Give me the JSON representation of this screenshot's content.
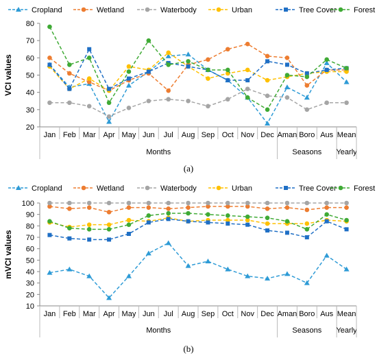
{
  "figure": {
    "panel_a_label": "(a)",
    "panel_b_label": "(b)"
  },
  "chart_data": [
    {
      "type": "line",
      "panel": "a",
      "ylabel": "VCI values",
      "ylim": [
        20,
        80
      ],
      "yticks": [
        20,
        30,
        40,
        50,
        60,
        70,
        80
      ],
      "grid": false,
      "legend_position": "top",
      "categories": [
        "Jan",
        "Feb",
        "Mar",
        "Apr",
        "May",
        "Jun",
        "Jul",
        "Aug",
        "Sep",
        "Oct",
        "Nov",
        "Dec",
        "Aman",
        "Boro",
        "Aus",
        "Mean"
      ],
      "groups": [
        {
          "label": "Months",
          "count": 12
        },
        {
          "label": "Seasons",
          "count": 3
        },
        {
          "label": "Yearly",
          "count": 1
        }
      ],
      "series": [
        {
          "name": "Cropland",
          "color": "#2E9BD6",
          "marker": "triangle",
          "values": [
            56,
            43,
            45,
            23,
            44,
            52,
            61,
            62,
            53,
            47,
            37,
            22,
            43,
            37,
            57,
            46
          ]
        },
        {
          "name": "Wetland",
          "color": "#ED7D31",
          "marker": "circle",
          "values": [
            60,
            51,
            46,
            41,
            47,
            51,
            41,
            56,
            59,
            65,
            68,
            61,
            60,
            44,
            53,
            53
          ]
        },
        {
          "name": "Waterbody",
          "color": "#A5A5A5",
          "marker": "circle",
          "values": [
            34,
            34,
            32,
            26,
            31,
            35,
            36,
            35,
            32,
            36,
            42,
            38,
            37,
            30,
            34,
            34
          ]
        },
        {
          "name": "Urban",
          "color": "#FFC000",
          "marker": "circle",
          "values": [
            55,
            42,
            48,
            41,
            55,
            53,
            63,
            55,
            48,
            51,
            53,
            47,
            49,
            51,
            52,
            52
          ]
        },
        {
          "name": "Tree Cover",
          "color": "#1F6FC5",
          "marker": "square",
          "values": [
            56,
            42,
            65,
            42,
            48,
            52,
            57,
            55,
            53,
            47,
            47,
            58,
            56,
            51,
            53,
            54
          ]
        },
        {
          "name": "Forest",
          "color": "#3FAA35",
          "marker": "circle",
          "values": [
            78,
            56,
            60,
            34,
            52,
            70,
            56,
            58,
            53,
            53,
            37,
            30,
            50,
            49,
            59,
            54
          ]
        }
      ]
    },
    {
      "type": "line",
      "panel": "b",
      "ylabel": "mVCI values",
      "ylim": [
        10,
        100
      ],
      "yticks": [
        10,
        20,
        30,
        40,
        50,
        60,
        70,
        80,
        90,
        100
      ],
      "grid": false,
      "legend_position": "top",
      "categories": [
        "Jan",
        "Feb",
        "Mar",
        "Apr",
        "May",
        "Jun",
        "Jul",
        "Aug",
        "Sep",
        "Oct",
        "Nov",
        "Dec",
        "Aman",
        "Boro",
        "Aus",
        "Mean"
      ],
      "groups": [
        {
          "label": "Months",
          "count": 12
        },
        {
          "label": "Seasons",
          "count": 3
        },
        {
          "label": "Yearly",
          "count": 1
        }
      ],
      "series": [
        {
          "name": "Cropland",
          "color": "#2E9BD6",
          "marker": "triangle",
          "values": [
            39,
            42,
            36,
            17,
            36,
            56,
            65,
            45,
            49,
            42,
            36,
            34,
            38,
            30,
            54,
            42
          ]
        },
        {
          "name": "Wetland",
          "color": "#ED7D31",
          "marker": "circle",
          "values": [
            97,
            95,
            96,
            92,
            96,
            96,
            95,
            96,
            97,
            97,
            97,
            95,
            96,
            94,
            96,
            96
          ]
        },
        {
          "name": "Waterbody",
          "color": "#A5A5A5",
          "marker": "circle",
          "values": [
            100,
            100,
            100,
            100,
            100,
            100,
            100,
            100,
            100,
            100,
            100,
            100,
            100,
            100,
            100,
            100
          ]
        },
        {
          "name": "Urban",
          "color": "#FFC000",
          "marker": "circle",
          "values": [
            83,
            79,
            81,
            81,
            85,
            84,
            87,
            84,
            85,
            85,
            85,
            82,
            82,
            82,
            85,
            84
          ]
        },
        {
          "name": "Tree Cover",
          "color": "#1F6FC5",
          "marker": "square",
          "values": [
            72,
            69,
            68,
            68,
            73,
            83,
            86,
            84,
            83,
            82,
            81,
            76,
            74,
            70,
            84,
            77
          ]
        },
        {
          "name": "Forest",
          "color": "#3FAA35",
          "marker": "circle",
          "values": [
            84,
            78,
            77,
            77,
            81,
            89,
            91,
            91,
            90,
            89,
            88,
            87,
            84,
            77,
            90,
            85
          ]
        }
      ]
    }
  ]
}
